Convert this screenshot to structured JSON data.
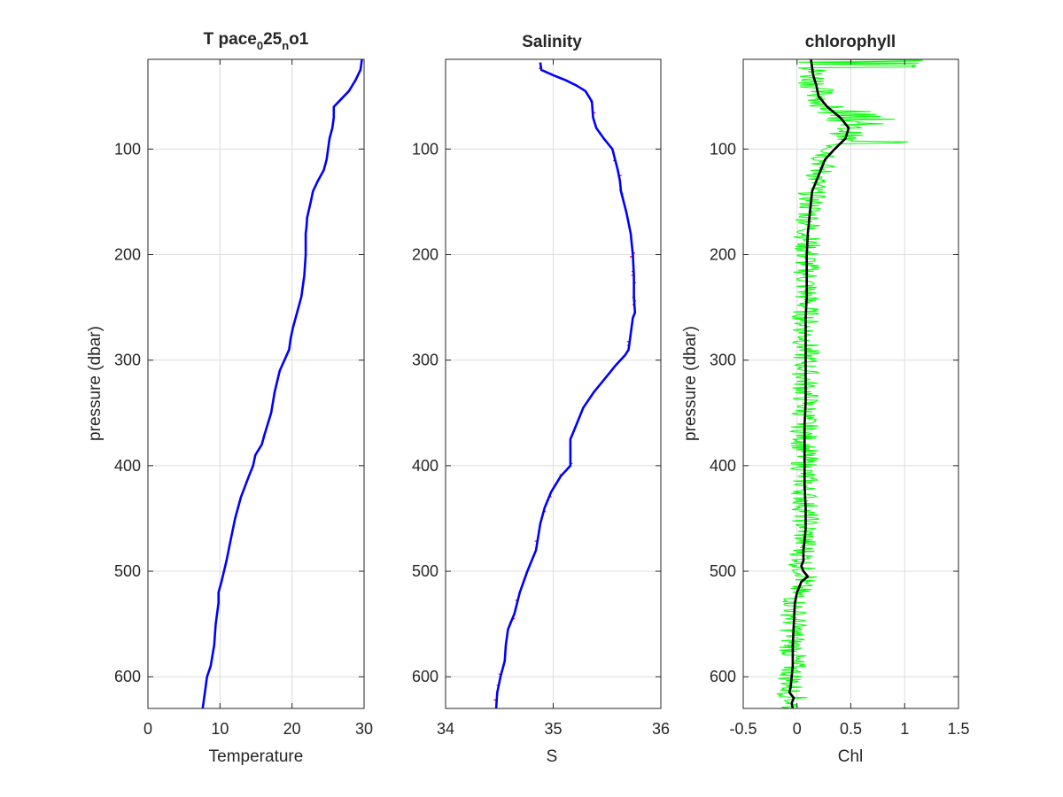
{
  "colors": {
    "temperature_line": "#0000ff",
    "salinity_line": "#0000ff",
    "salinity_raw": "#ff0000",
    "chl_raw": "#00ff00",
    "chl_smooth": "#000000",
    "grid": "#dcdcdc",
    "axes": "#262626"
  },
  "chart_data": [
    {
      "type": "line",
      "title": "T pace",
      "title_sub1": "0",
      "title_mid": "25",
      "title_sub2": "n",
      "title_end": "o1",
      "xlabel": "Temperature",
      "ylabel": "pressure (dbar)",
      "xlim": [
        0,
        30
      ],
      "ylim": [
        630,
        15
      ],
      "y_reversed": true,
      "xticks": [
        0,
        10,
        20,
        30
      ],
      "yticks": [
        100,
        200,
        300,
        400,
        500,
        600
      ],
      "grid": true,
      "series": [
        {
          "x": [
            29.7,
            29.5,
            28.8,
            27.9,
            26.5,
            25.8,
            25.8,
            25.6,
            25.2,
            24.8,
            24.4,
            23.6,
            22.9,
            22.6,
            22.1,
            22.0,
            21.9,
            21.9,
            21.7,
            21.3,
            20.5,
            20.1,
            19.8,
            19.6,
            18.3,
            17.6,
            17.1,
            16.2,
            15.8,
            14.9,
            14.6,
            14.0,
            12.9,
            12.1,
            11.5,
            10.9,
            10.2,
            9.8,
            9.8,
            9.4,
            9.2,
            8.7,
            8.2,
            8.0,
            7.6
          ],
          "y": [
            15,
            25,
            35,
            45,
            55,
            60,
            70,
            80,
            90,
            110,
            120,
            130,
            140,
            150,
            165,
            175,
            180,
            200,
            220,
            240,
            260,
            270,
            280,
            290,
            310,
            330,
            350,
            370,
            380,
            390,
            400,
            410,
            430,
            450,
            470,
            490,
            510,
            520,
            530,
            550,
            570,
            590,
            600,
            610,
            630
          ]
        }
      ]
    },
    {
      "type": "line",
      "title": "Salinity",
      "xlabel": "S",
      "ylabel": "",
      "xlim": [
        34,
        36
      ],
      "ylim": [
        630,
        15
      ],
      "y_reversed": true,
      "xticks": [
        34,
        35,
        36
      ],
      "yticks": [
        100,
        200,
        300,
        400,
        500,
        600
      ],
      "grid": true,
      "series": [
        {
          "name": "",
          "x": [
            34.88,
            34.89,
            35.0,
            35.12,
            35.22,
            35.3,
            35.36,
            35.37,
            35.4,
            35.47,
            35.55,
            35.6,
            35.62,
            35.63,
            35.68,
            35.72,
            35.74,
            35.75,
            35.75,
            35.76,
            35.74,
            35.72,
            35.7,
            35.67,
            35.58,
            35.5,
            35.38,
            35.28,
            35.22,
            35.16,
            35.16,
            35.07,
            34.98,
            34.92,
            34.88,
            34.84,
            34.76,
            34.69,
            34.64,
            34.58,
            34.56,
            34.55,
            34.51,
            34.48,
            34.47
          ],
          "y": [
            18,
            25,
            30,
            35,
            40,
            45,
            55,
            70,
            80,
            90,
            100,
            120,
            130,
            140,
            160,
            180,
            200,
            220,
            240,
            255,
            260,
            275,
            290,
            295,
            305,
            315,
            330,
            345,
            360,
            375,
            400,
            410,
            425,
            440,
            455,
            480,
            500,
            520,
            540,
            555,
            570,
            585,
            600,
            615,
            630
          ]
        }
      ]
    },
    {
      "type": "line",
      "title": "chlorophyll",
      "xlabel": "Chl",
      "ylabel": "pressure (dbar)",
      "xlim": [
        -0.5,
        1.5
      ],
      "ylim": [
        630,
        15
      ],
      "y_reversed": true,
      "xticks": [
        -0.5,
        0,
        0.5,
        1,
        1.5
      ],
      "xticklabels": [
        "-0.5",
        "0",
        "0.5",
        "1",
        "1.5"
      ],
      "yticks": [
        100,
        200,
        300,
        400,
        500,
        600
      ],
      "grid": true,
      "series": [
        {
          "name": "",
          "x": [
            0.13,
            0.15,
            0.18,
            0.2,
            0.28,
            0.4,
            0.48,
            0.45,
            0.35,
            0.26,
            0.22,
            0.18,
            0.14,
            0.12,
            0.1,
            0.09,
            0.09,
            0.09,
            0.08,
            0.08,
            0.08,
            0.08,
            0.08,
            0.07,
            0.07,
            0.07,
            0.07,
            0.08,
            0.08,
            0.07,
            0.06,
            0.06,
            0.04,
            0.06,
            0.1,
            0.04,
            0.0,
            -0.02,
            -0.03,
            -0.04,
            -0.04,
            -0.05,
            -0.06,
            -0.07,
            -0.03,
            -0.05,
            -0.04
          ],
          "y": [
            15,
            30,
            40,
            50,
            60,
            70,
            80,
            90,
            100,
            110,
            120,
            130,
            140,
            160,
            180,
            200,
            220,
            240,
            260,
            280,
            300,
            320,
            340,
            360,
            380,
            400,
            420,
            440,
            460,
            470,
            480,
            490,
            495,
            500,
            505,
            510,
            520,
            530,
            550,
            570,
            590,
            600,
            610,
            615,
            620,
            625,
            630
          ]
        }
      ]
    }
  ]
}
